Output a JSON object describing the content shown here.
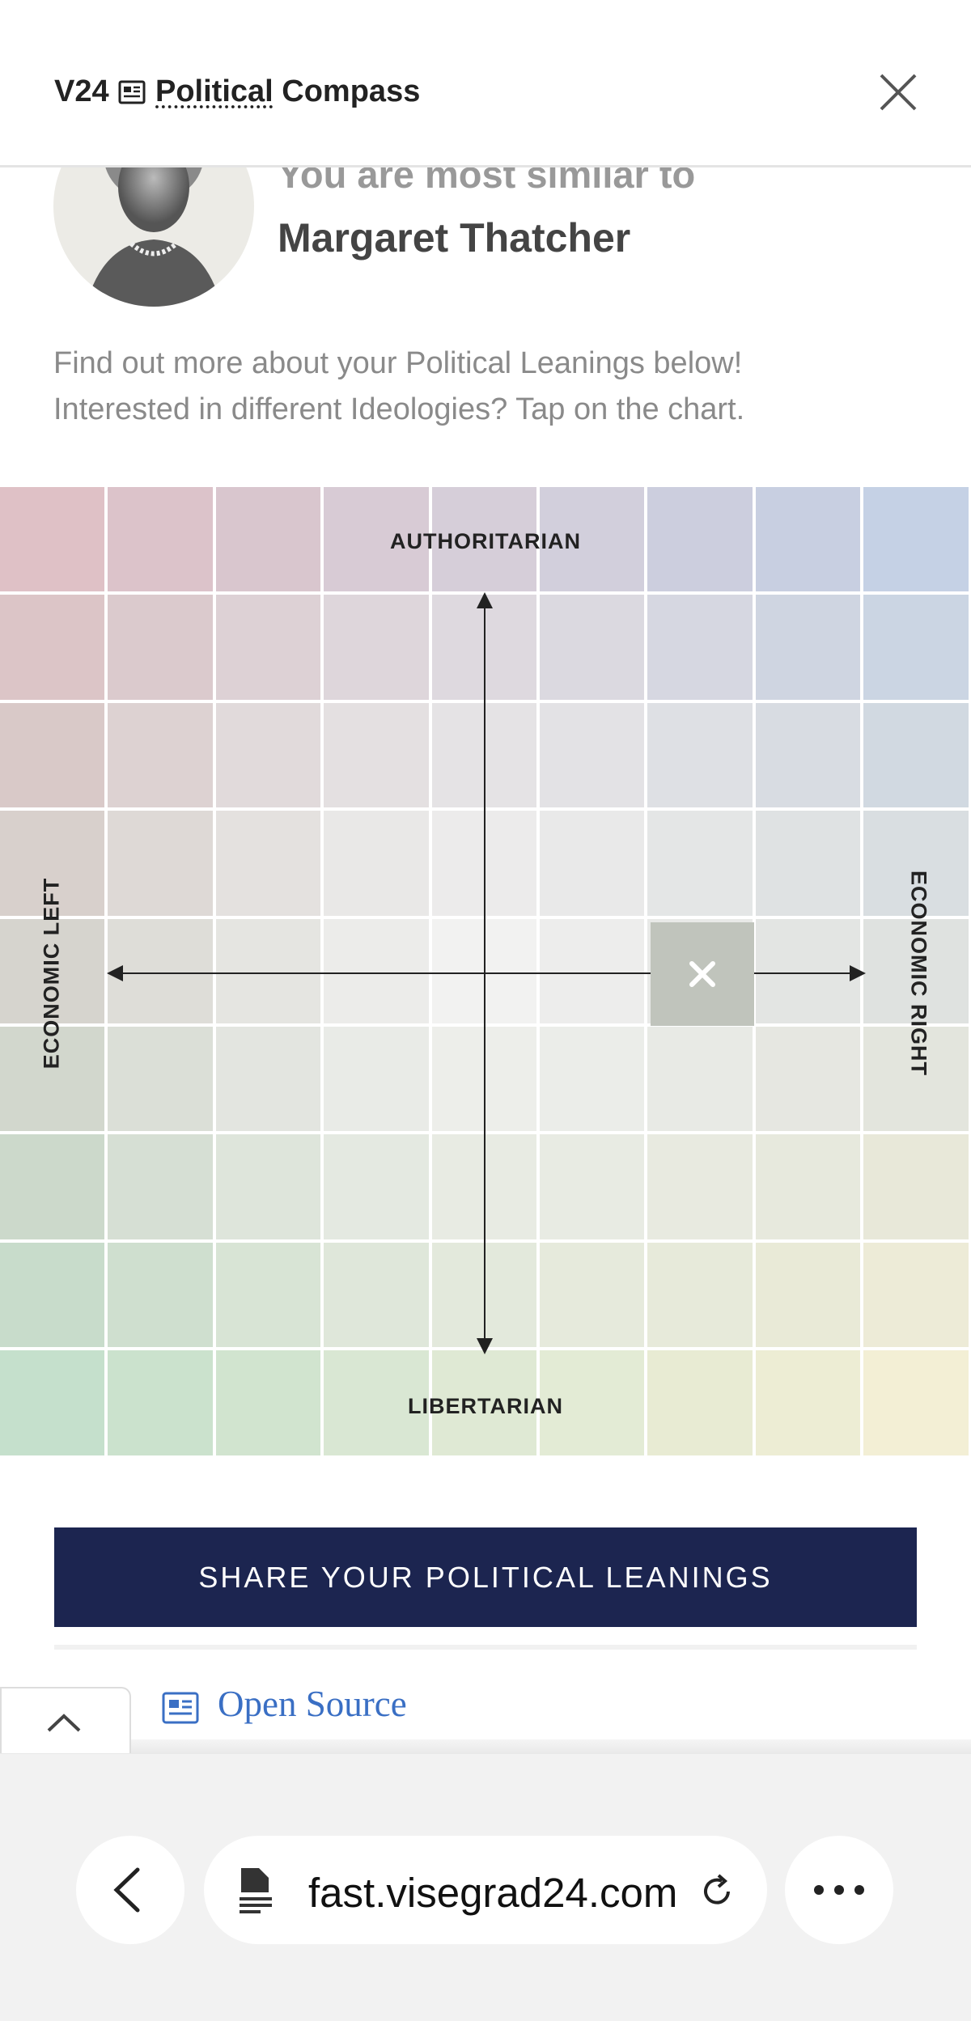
{
  "header": {
    "brand": "V24",
    "title_link": "Political",
    "title_rest": "Compass"
  },
  "result": {
    "intro": "You are most similar to",
    "name": "Margaret Thatcher"
  },
  "description": [
    "Find out more about your Political Leanings below!",
    "Interested in different Ideologies? Tap on the chart."
  ],
  "compass": {
    "top": "AUTHORITARIAN",
    "bottom": "LIBERTARIAN",
    "left": "ECONOMIC LEFT",
    "right": "ECONOMIC RIGHT"
  },
  "share_button": "SHARE YOUR POLITICAL LEANINGS",
  "source_link": "Open Source",
  "browser": {
    "url": "fast.visegrad24.com"
  }
}
